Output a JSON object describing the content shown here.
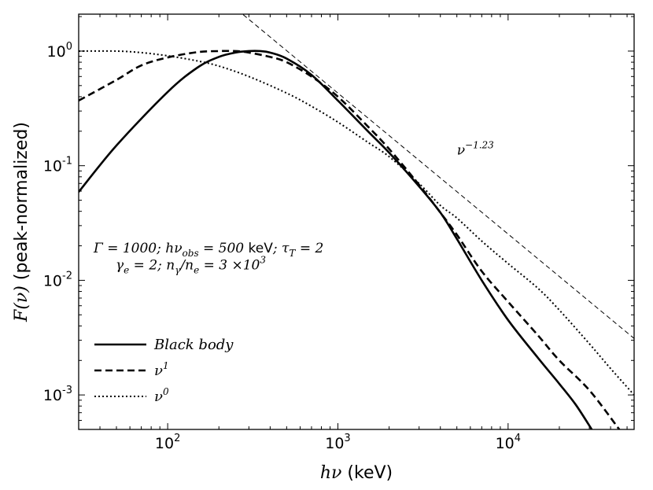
{
  "chart_data": {
    "type": "line",
    "xscale": "log",
    "yscale": "log",
    "xlim": [
      30,
      55000
    ],
    "ylim": [
      0.0005,
      2.1
    ],
    "xlabel": {
      "math": "hν",
      "unit": " (keV)"
    },
    "ylabel": {
      "math": "F(ν)",
      "text": " (peak-normalized)"
    },
    "xticks": [
      {
        "value": 100,
        "base": "10",
        "exp": "2"
      },
      {
        "value": 1000,
        "base": "10",
        "exp": "3"
      },
      {
        "value": 10000,
        "base": "10",
        "exp": "4"
      }
    ],
    "yticks": [
      {
        "value": 1,
        "base": "10",
        "exp": "0"
      },
      {
        "value": 0.1,
        "base": "10",
        "exp": "-1"
      },
      {
        "value": 0.01,
        "base": "10",
        "exp": "-2"
      },
      {
        "value": 0.001,
        "base": "10",
        "exp": "-3"
      }
    ],
    "series": [
      {
        "name": "Black body",
        "style": "solid",
        "x": [
          30,
          50,
          100,
          150,
          200,
          250,
          300,
          350,
          400,
          500,
          700,
          1000,
          1500,
          2000,
          3000,
          4000,
          5000,
          7000,
          10000,
          15000,
          20000,
          25000,
          31000
        ],
        "y": [
          0.059,
          0.15,
          0.44,
          0.72,
          0.89,
          0.97,
          1.0,
          1.0,
          0.97,
          0.86,
          0.62,
          0.37,
          0.2,
          0.13,
          0.066,
          0.039,
          0.023,
          0.01,
          0.0045,
          0.0021,
          0.00125,
          0.00082,
          0.0005
        ]
      },
      {
        "name": "ν^1",
        "style": "dashed",
        "x": [
          30,
          50,
          70,
          100,
          150,
          200,
          250,
          300,
          400,
          500,
          700,
          1000,
          1500,
          2000,
          3000,
          4000,
          5000,
          7000,
          10000,
          15000,
          20000,
          30000,
          45000
        ],
        "y": [
          0.37,
          0.56,
          0.75,
          0.88,
          0.98,
          1.0,
          1.0,
          0.97,
          0.89,
          0.8,
          0.6,
          0.4,
          0.22,
          0.14,
          0.068,
          0.039,
          0.025,
          0.012,
          0.0065,
          0.0033,
          0.002,
          0.0011,
          0.0005
        ]
      },
      {
        "name": "ν^0",
        "style": "dotted",
        "x": [
          30,
          50,
          70,
          100,
          150,
          200,
          300,
          500,
          700,
          1000,
          1500,
          2000,
          3000,
          4000,
          5000,
          7000,
          10000,
          15000,
          20000,
          30000,
          40000,
          55000
        ],
        "y": [
          1.0,
          1.0,
          0.97,
          0.91,
          0.82,
          0.74,
          0.6,
          0.43,
          0.33,
          0.24,
          0.16,
          0.12,
          0.07,
          0.045,
          0.035,
          0.022,
          0.014,
          0.0085,
          0.0055,
          0.0028,
          0.0017,
          0.001
        ]
      }
    ],
    "reference_line": {
      "name": "power law",
      "style": "thin-dashed",
      "slope": -1.23,
      "anchor": {
        "x": 1000,
        "y": 0.43
      },
      "label": {
        "math": "ν",
        "exp": "−1.23",
        "at": {
          "x": 5000,
          "y": 0.125
        }
      }
    },
    "annotations": [
      {
        "name": "parameters-line-1",
        "at": {
          "x": 100,
          "y": 0.0175
        },
        "parts": [
          {
            "text": "Γ = 1000; ",
            "math": true
          },
          {
            "text": "hν",
            "math": true
          },
          {
            "text": "obs",
            "sub": true,
            "math": true
          },
          {
            "text": " = 500 ",
            "math": true
          },
          {
            "text": "keV",
            "math": false
          },
          {
            "text": "; τ",
            "math": true
          },
          {
            "text": "T",
            "sub": true,
            "math": true
          },
          {
            "text": " = 2",
            "math": true
          }
        ]
      },
      {
        "name": "parameters-line-2",
        "at": {
          "x": 140,
          "y": 0.0125
        },
        "parts": [
          {
            "text": "γ",
            "math": true
          },
          {
            "text": "e",
            "sub": true,
            "math": true
          },
          {
            "text": " = 2; n",
            "math": true
          },
          {
            "text": "γ",
            "sub": true,
            "math": true
          },
          {
            "text": "/n",
            "math": true
          },
          {
            "text": "e",
            "sub": true,
            "math": true
          },
          {
            "text": " = 3 ×10",
            "math": true
          },
          {
            "text": "3",
            "sup": true,
            "math": true
          }
        ]
      }
    ],
    "legend": {
      "placement": "lower-left",
      "entries": [
        {
          "style": "solid",
          "label": "Black body"
        },
        {
          "style": "dashed",
          "label": "ν",
          "sup": "1"
        },
        {
          "style": "dotted",
          "label": "ν",
          "sup": "0"
        }
      ]
    }
  }
}
